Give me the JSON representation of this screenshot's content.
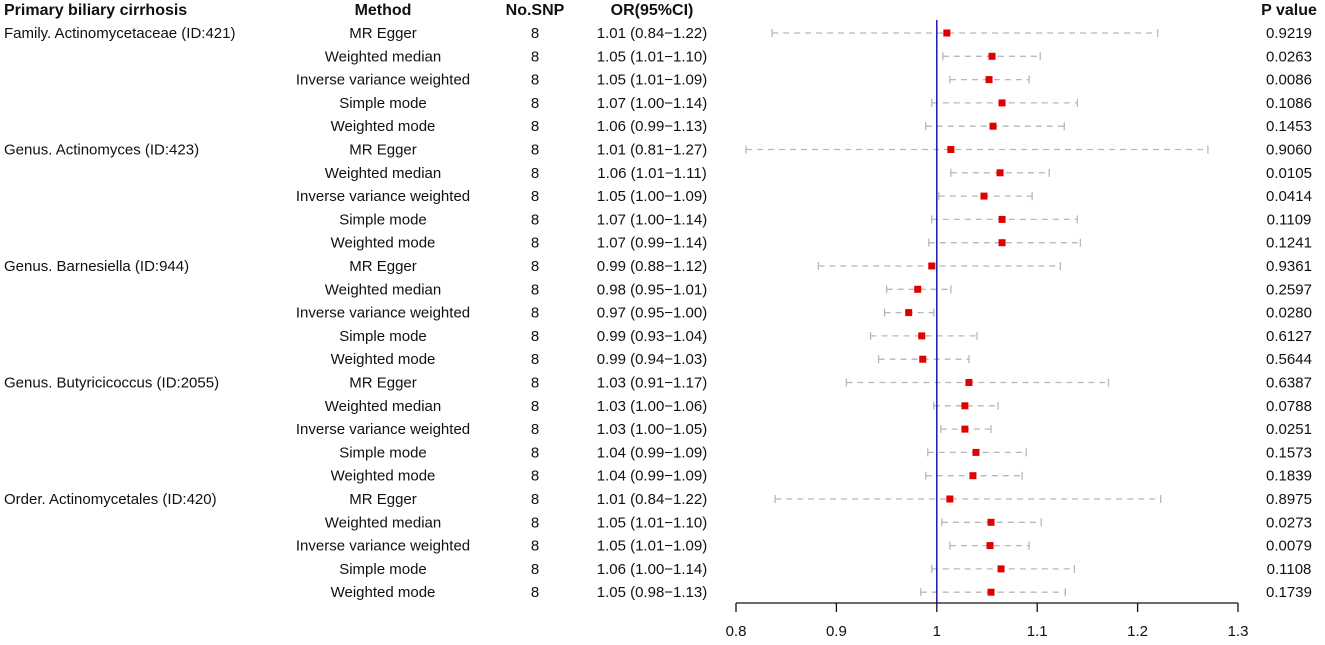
{
  "chart_data": {
    "type": "forest",
    "title": "Primary biliary cirrhosis",
    "headers": {
      "exposure": "Primary biliary cirrhosis",
      "method": "Method",
      "nsnp": "No.SNP",
      "or": "OR(95%CI)",
      "p": "P value"
    },
    "xlim": [
      0.8,
      1.3
    ],
    "xticks": [
      0.8,
      0.9,
      1,
      1.1,
      1.2,
      1.3
    ],
    "xtick_labels": [
      "0.8",
      "0.9",
      "1",
      "1.1",
      "1.2",
      "1.3"
    ],
    "reference_line": 1,
    "colors": {
      "point": "#e00000",
      "ci": "#b8b8b8",
      "reference": "#1a1aa6",
      "axis": "#111111"
    },
    "rows": [
      {
        "group": "Family. Actinomycetaceae (ID:421)",
        "method": "MR Egger",
        "nsnp": "8",
        "or_text": "1.01 (0.84−1.22)",
        "or": 1.01,
        "lo": 0.836,
        "hi": 1.22,
        "p": "0.9219"
      },
      {
        "group": "",
        "method": "Weighted median",
        "nsnp": "8",
        "or_text": "1.05 (1.01−1.10)",
        "or": 1.055,
        "lo": 1.006,
        "hi": 1.103,
        "p": "0.0263"
      },
      {
        "group": "",
        "method": "Inverse variance weighted",
        "nsnp": "8",
        "or_text": "1.05 (1.01−1.09)",
        "or": 1.052,
        "lo": 1.013,
        "hi": 1.092,
        "p": "0.0086"
      },
      {
        "group": "",
        "method": "Simple mode",
        "nsnp": "8",
        "or_text": "1.07 (1.00−1.14)",
        "or": 1.065,
        "lo": 0.995,
        "hi": 1.14,
        "p": "0.1086"
      },
      {
        "group": "",
        "method": "Weighted mode",
        "nsnp": "8",
        "or_text": "1.06 (0.99−1.13)",
        "or": 1.056,
        "lo": 0.989,
        "hi": 1.127,
        "p": "0.1453"
      },
      {
        "group": "Genus. Actinomyces (ID:423)",
        "method": "MR Egger",
        "nsnp": "8",
        "or_text": "1.01 (0.81−1.27)",
        "or": 1.014,
        "lo": 0.81,
        "hi": 1.27,
        "p": "0.9060"
      },
      {
        "group": "",
        "method": "Weighted median",
        "nsnp": "8",
        "or_text": "1.06 (1.01−1.11)",
        "or": 1.063,
        "lo": 1.014,
        "hi": 1.112,
        "p": "0.0105"
      },
      {
        "group": "",
        "method": "Inverse variance weighted",
        "nsnp": "8",
        "or_text": "1.05 (1.00−1.09)",
        "or": 1.047,
        "lo": 1.002,
        "hi": 1.095,
        "p": "0.0414"
      },
      {
        "group": "",
        "method": "Simple mode",
        "nsnp": "8",
        "or_text": "1.07 (1.00−1.14)",
        "or": 1.065,
        "lo": 0.995,
        "hi": 1.14,
        "p": "0.1109"
      },
      {
        "group": "",
        "method": "Weighted mode",
        "nsnp": "8",
        "or_text": "1.07 (0.99−1.14)",
        "or": 1.065,
        "lo": 0.992,
        "hi": 1.143,
        "p": "0.1241"
      },
      {
        "group": "Genus. Barnesiella (ID:944)",
        "method": "MR Egger",
        "nsnp": "8",
        "or_text": "0.99 (0.88−1.12)",
        "or": 0.995,
        "lo": 0.882,
        "hi": 1.123,
        "p": "0.9361"
      },
      {
        "group": "",
        "method": "Weighted median",
        "nsnp": "8",
        "or_text": "0.98 (0.95−1.01)",
        "or": 0.981,
        "lo": 0.95,
        "hi": 1.014,
        "p": "0.2597"
      },
      {
        "group": "",
        "method": "Inverse variance weighted",
        "nsnp": "8",
        "or_text": "0.97 (0.95−1.00)",
        "or": 0.972,
        "lo": 0.948,
        "hi": 0.997,
        "p": "0.0280"
      },
      {
        "group": "",
        "method": "Simple mode",
        "nsnp": "8",
        "or_text": "0.99 (0.93−1.04)",
        "or": 0.985,
        "lo": 0.934,
        "hi": 1.04,
        "p": "0.6127"
      },
      {
        "group": "",
        "method": "Weighted mode",
        "nsnp": "8",
        "or_text": "0.99 (0.94−1.03)",
        "or": 0.986,
        "lo": 0.942,
        "hi": 1.032,
        "p": "0.5644"
      },
      {
        "group": "Genus. Butyricicoccus (ID:2055)",
        "method": "MR Egger",
        "nsnp": "8",
        "or_text": "1.03 (0.91−1.17)",
        "or": 1.032,
        "lo": 0.91,
        "hi": 1.171,
        "p": "0.6387"
      },
      {
        "group": "",
        "method": "Weighted median",
        "nsnp": "8",
        "or_text": "1.03 (1.00−1.06)",
        "or": 1.028,
        "lo": 0.997,
        "hi": 1.061,
        "p": "0.0788"
      },
      {
        "group": "",
        "method": "Inverse variance weighted",
        "nsnp": "8",
        "or_text": "1.03 (1.00−1.05)",
        "or": 1.028,
        "lo": 1.004,
        "hi": 1.054,
        "p": "0.0251"
      },
      {
        "group": "",
        "method": "Simple mode",
        "nsnp": "8",
        "or_text": "1.04 (0.99−1.09)",
        "or": 1.039,
        "lo": 0.991,
        "hi": 1.089,
        "p": "0.1573"
      },
      {
        "group": "",
        "method": "Weighted mode",
        "nsnp": "8",
        "or_text": "1.04 (0.99−1.09)",
        "or": 1.036,
        "lo": 0.989,
        "hi": 1.085,
        "p": "0.1839"
      },
      {
        "group": "Order. Actinomycetales (ID:420)",
        "method": "MR Egger",
        "nsnp": "8",
        "or_text": "1.01 (0.84−1.22)",
        "or": 1.013,
        "lo": 0.839,
        "hi": 1.223,
        "p": "0.8975"
      },
      {
        "group": "",
        "method": "Weighted median",
        "nsnp": "8",
        "or_text": "1.05 (1.01−1.10)",
        "or": 1.054,
        "lo": 1.005,
        "hi": 1.104,
        "p": "0.0273"
      },
      {
        "group": "",
        "method": "Inverse variance weighted",
        "nsnp": "8",
        "or_text": "1.05 (1.01−1.09)",
        "or": 1.053,
        "lo": 1.013,
        "hi": 1.092,
        "p": "0.0079"
      },
      {
        "group": "",
        "method": "Simple mode",
        "nsnp": "8",
        "or_text": "1.06 (1.00−1.14)",
        "or": 1.064,
        "lo": 0.995,
        "hi": 1.137,
        "p": "0.1108"
      },
      {
        "group": "",
        "method": "Weighted mode",
        "nsnp": "8",
        "or_text": "1.05 (0.98−1.13)",
        "or": 1.054,
        "lo": 0.984,
        "hi": 1.128,
        "p": "0.1739"
      }
    ]
  }
}
